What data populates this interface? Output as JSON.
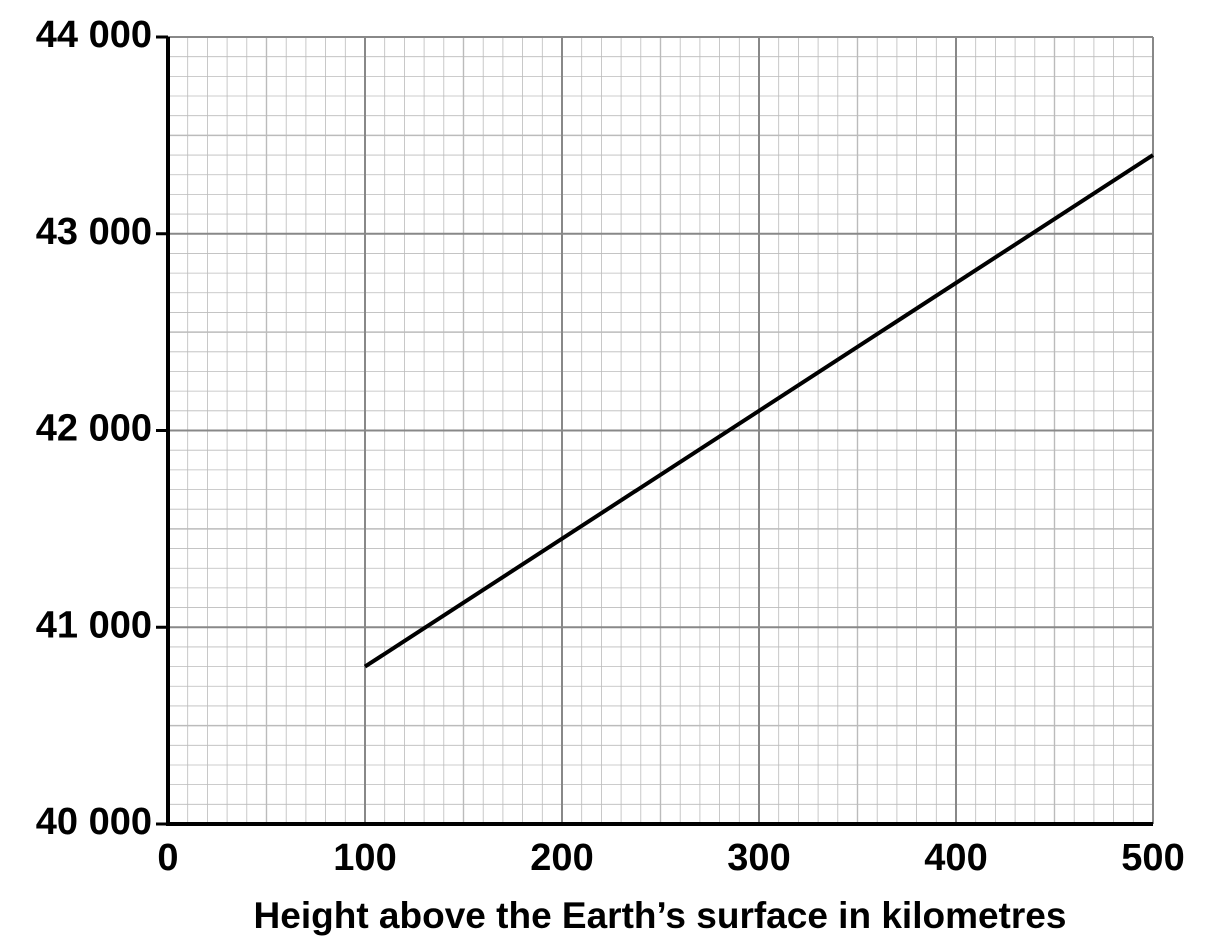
{
  "chart_data": {
    "type": "line",
    "x_label": "Height above the Earth’s surface in kilometres",
    "series": [
      {
        "color": "#000000",
        "x": [
          100,
          500
        ],
        "values": [
          40800,
          43400
        ]
      }
    ],
    "xlim": [
      0,
      500
    ],
    "xticks": [
      0,
      100,
      200,
      300,
      400,
      500
    ],
    "ylim": [
      40000,
      44000
    ],
    "yticks": [
      {
        "value": 40000,
        "label": "40 000"
      },
      {
        "value": 41000,
        "label": "41 000"
      },
      {
        "value": 42000,
        "label": "42 000"
      },
      {
        "value": 43000,
        "label": "43 000"
      },
      {
        "value": 44000,
        "label": "44 000"
      }
    ],
    "grid": true,
    "minor_grid": true
  }
}
